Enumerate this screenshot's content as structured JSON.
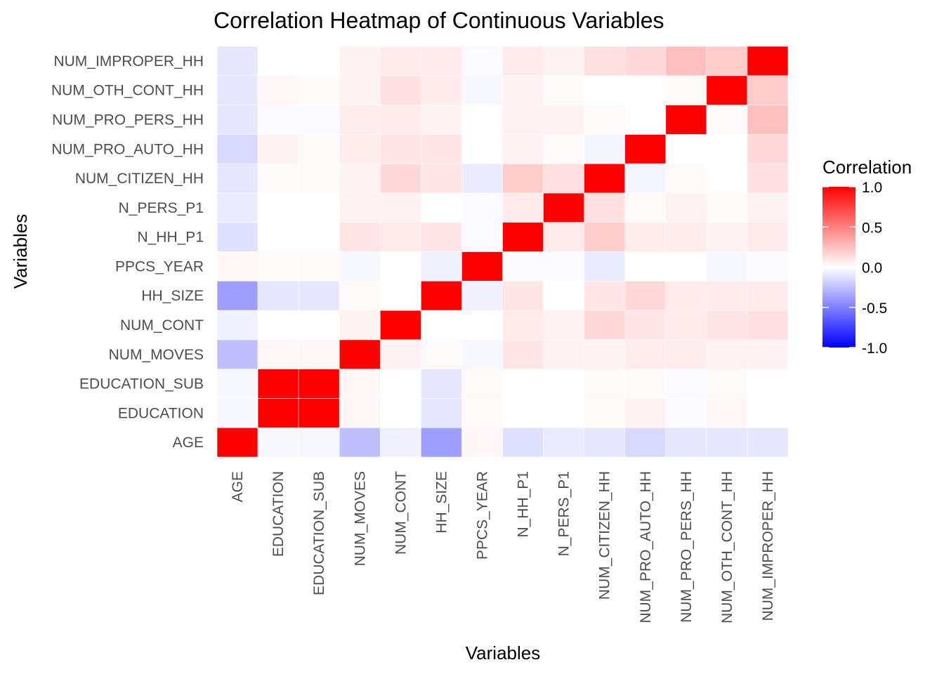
{
  "chart_data": {
    "type": "heatmap",
    "title": "Correlation Heatmap of Continuous Variables",
    "xlabel": "Variables",
    "ylabel": "Variables",
    "variables": [
      "AGE",
      "EDUCATION",
      "EDUCATION_SUB",
      "NUM_MOVES",
      "NUM_CONT",
      "HH_SIZE",
      "PPCS_YEAR",
      "N_HH_P1",
      "N_PERS_P1",
      "NUM_CITIZEN_HH",
      "NUM_PRO_AUTO_HH",
      "NUM_PRO_PERS_HH",
      "NUM_OTH_CONT_HH",
      "NUM_IMPROPER_HH"
    ],
    "matrix": [
      [
        1.0,
        -0.03,
        -0.03,
        -0.25,
        -0.06,
        -0.38,
        0.03,
        -0.12,
        -0.08,
        -0.1,
        -0.15,
        -0.1,
        -0.1,
        -0.1
      ],
      [
        -0.03,
        1.0,
        1.0,
        0.03,
        0.0,
        -0.1,
        0.02,
        0.0,
        0.0,
        0.02,
        0.05,
        -0.02,
        0.03,
        0.0
      ],
      [
        -0.03,
        1.0,
        1.0,
        0.03,
        0.0,
        -0.1,
        0.02,
        0.0,
        0.0,
        0.02,
        0.02,
        -0.02,
        0.02,
        0.0
      ],
      [
        -0.25,
        0.03,
        0.03,
        1.0,
        0.05,
        0.02,
        -0.03,
        0.1,
        0.05,
        0.05,
        0.07,
        0.07,
        0.05,
        0.05
      ],
      [
        -0.06,
        0.0,
        0.0,
        0.05,
        1.0,
        0.0,
        0.0,
        0.08,
        0.05,
        0.15,
        0.1,
        0.08,
        0.1,
        0.12
      ],
      [
        -0.38,
        -0.1,
        -0.1,
        0.02,
        0.0,
        1.0,
        -0.05,
        0.1,
        0.0,
        0.1,
        0.15,
        0.08,
        0.08,
        0.08
      ],
      [
        0.03,
        0.02,
        0.02,
        -0.03,
        0.0,
        -0.05,
        1.0,
        -0.02,
        -0.02,
        -0.08,
        0.0,
        0.0,
        -0.03,
        -0.02
      ],
      [
        -0.12,
        0.0,
        0.0,
        0.1,
        0.08,
        0.1,
        -0.02,
        1.0,
        0.08,
        0.2,
        0.07,
        0.07,
        0.05,
        0.08
      ],
      [
        -0.08,
        0.0,
        0.0,
        0.05,
        0.05,
        0.0,
        -0.02,
        0.08,
        1.0,
        0.12,
        0.02,
        0.05,
        0.02,
        0.05
      ],
      [
        -0.1,
        0.02,
        0.02,
        0.05,
        0.15,
        0.1,
        -0.08,
        0.2,
        0.12,
        1.0,
        -0.04,
        0.02,
        0.0,
        0.12
      ],
      [
        -0.15,
        0.05,
        0.02,
        0.07,
        0.1,
        0.1,
        0.0,
        0.05,
        0.02,
        -0.04,
        1.0,
        0.0,
        0.0,
        0.15
      ],
      [
        -0.1,
        -0.02,
        -0.02,
        0.07,
        0.08,
        0.05,
        0.0,
        0.05,
        0.05,
        0.02,
        0.0,
        1.0,
        0.02,
        0.25
      ],
      [
        -0.1,
        0.03,
        0.02,
        0.05,
        0.12,
        0.08,
        -0.03,
        0.05,
        0.02,
        0.0,
        0.0,
        0.02,
        1.0,
        0.2
      ],
      [
        -0.1,
        0.0,
        0.0,
        0.05,
        0.08,
        0.08,
        -0.02,
        0.08,
        0.05,
        0.12,
        0.15,
        0.25,
        0.2,
        1.0
      ]
    ],
    "legend": {
      "title": "Correlation",
      "ticks": [
        "1.0",
        "0.5",
        "0.0",
        "-0.5",
        "-1.0"
      ],
      "tick_values": [
        1.0,
        0.5,
        0.0,
        -0.5,
        -1.0
      ],
      "range": [
        -1.0,
        1.0
      ],
      "colors": {
        "low": "#0000ff",
        "mid": "#ffffff",
        "high": "#ff0000"
      },
      "placement": "right"
    }
  }
}
